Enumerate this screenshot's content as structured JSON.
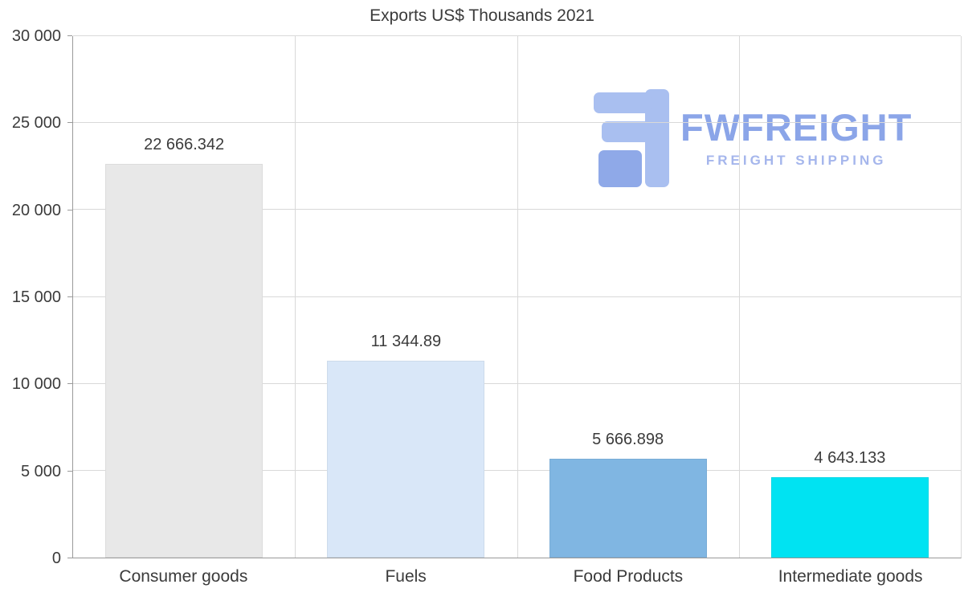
{
  "chart_data": {
    "type": "bar",
    "title": "Exports US$ Thousands 2021",
    "categories": [
      "Consumer goods",
      "Fuels",
      "Food Products",
      "Intermediate goods"
    ],
    "values": [
      22666.342,
      11344.89,
      5666.898,
      4643.133
    ],
    "value_labels": [
      "22 666.342",
      "11 344.89",
      "5 666.898",
      "4 643.133"
    ],
    "bar_colors": [
      "#e8e8e8",
      "#d9e7f8",
      "#80b6e2",
      "#00e3f2"
    ],
    "xlabel": "",
    "ylabel": "",
    "ylim": [
      0,
      30000
    ],
    "yticks": [
      0,
      5000,
      10000,
      15000,
      20000,
      25000,
      30000
    ],
    "ytick_labels": [
      "0",
      "5 000",
      "10 000",
      "15 000",
      "20 000",
      "25 000",
      "30 000"
    ],
    "grid": true,
    "legend": "none"
  },
  "watermark": {
    "brand": "FWFREIGHT",
    "tagline": "FREIGHT SHIPPING",
    "brand_color": "#8ba5e8",
    "icon_color_light": "#a9bff0",
    "icon_color_dark": "#8fa9e8"
  }
}
